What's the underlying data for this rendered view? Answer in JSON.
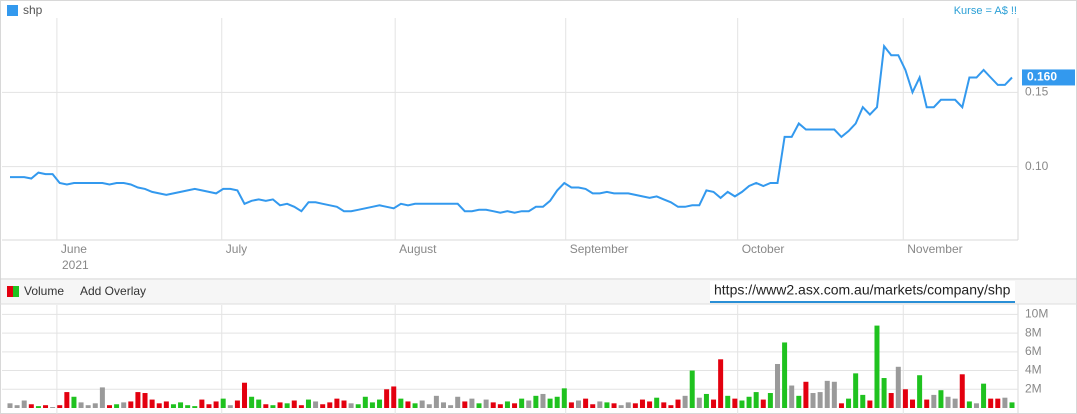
{
  "chart_data": [
    {
      "type": "line",
      "note": "Kurse = A$ !!",
      "year_label": "2021",
      "series": [
        {
          "name": "shp",
          "color": "#3399ee",
          "values": [
            0.093,
            0.093,
            0.093,
            0.092,
            0.096,
            0.095,
            0.095,
            0.089,
            0.088,
            0.089,
            0.089,
            0.089,
            0.089,
            0.089,
            0.088,
            0.089,
            0.089,
            0.088,
            0.086,
            0.085,
            0.083,
            0.082,
            0.081,
            0.082,
            0.083,
            0.084,
            0.085,
            0.084,
            0.083,
            0.082,
            0.085,
            0.085,
            0.084,
            0.075,
            0.077,
            0.078,
            0.077,
            0.078,
            0.074,
            0.075,
            0.073,
            0.07,
            0.076,
            0.076,
            0.075,
            0.074,
            0.073,
            0.07,
            0.07,
            0.071,
            0.072,
            0.073,
            0.074,
            0.073,
            0.072,
            0.075,
            0.074,
            0.075,
            0.075,
            0.075,
            0.075,
            0.075,
            0.075,
            0.075,
            0.07,
            0.07,
            0.071,
            0.071,
            0.07,
            0.069,
            0.07,
            0.069,
            0.07,
            0.07,
            0.073,
            0.073,
            0.077,
            0.084,
            0.089,
            0.086,
            0.086,
            0.085,
            0.082,
            0.082,
            0.083,
            0.082,
            0.082,
            0.082,
            0.081,
            0.08,
            0.079,
            0.08,
            0.078,
            0.076,
            0.073,
            0.073,
            0.074,
            0.074,
            0.084,
            0.083,
            0.079,
            0.083,
            0.08,
            0.083,
            0.087,
            0.089,
            0.087,
            0.089,
            0.089,
            0.12,
            0.12,
            0.129,
            0.125,
            0.125,
            0.125,
            0.125,
            0.125,
            0.12,
            0.124,
            0.129,
            0.14,
            0.135,
            0.14,
            0.181,
            0.175,
            0.175,
            0.165,
            0.15,
            0.16,
            0.14,
            0.14,
            0.145,
            0.145,
            0.145,
            0.14,
            0.16,
            0.16,
            0.165,
            0.16,
            0.155,
            0.155,
            0.16
          ]
        }
      ],
      "current_value": {
        "value": 0.16,
        "label": "0.160"
      },
      "xlim": [
        0,
        141
      ],
      "xticks": [
        {
          "value": 6.6,
          "label": "June"
        },
        {
          "value": 29.8,
          "label": "July"
        },
        {
          "value": 54.2,
          "label": "August"
        },
        {
          "value": 78.2,
          "label": "September"
        },
        {
          "value": 102.4,
          "label": "October"
        },
        {
          "value": 125.7,
          "label": "November"
        }
      ],
      "ylim": [
        0.052,
        0.2
      ],
      "yticks": [
        {
          "value": 0.1,
          "label": "0.10"
        },
        0.15
      ],
      "grid": true
    },
    {
      "type": "bar",
      "add_overlay": "Add Overlay",
      "url": "https://www2.asx.com.au/markets/company/shp",
      "series": [
        {
          "name": "Volume",
          "values": [
            500000,
            300000,
            800000,
            400000,
            200000,
            300000,
            100000,
            300000,
            1700000,
            1200000,
            600000,
            300000,
            500000,
            2200000,
            300000,
            400000,
            600000,
            700000,
            1700000,
            1600000,
            900000,
            500000,
            700000,
            400000,
            600000,
            300000,
            200000,
            900000,
            400000,
            700000,
            1000000,
            300000,
            800000,
            2700000,
            1200000,
            900000,
            400000,
            300000,
            600000,
            500000,
            800000,
            300000,
            900000,
            700000,
            400000,
            600000,
            1000000,
            800000,
            500000,
            400000,
            1200000,
            600000,
            900000,
            2000000,
            2300000,
            1000000,
            700000,
            500000,
            800000,
            400000,
            1300000,
            600000,
            300000,
            1200000,
            700000,
            1000000,
            500000,
            900000,
            600000,
            400000,
            700000,
            500000,
            1000000,
            800000,
            1300000,
            1500000,
            1000000,
            1200000,
            2100000,
            600000,
            800000,
            1000000,
            400000,
            700000,
            600000,
            500000,
            300000,
            600000,
            500000,
            900000,
            700000,
            1100000,
            600000,
            300000,
            900000,
            1300000,
            4000000,
            1100000,
            1500000,
            900000,
            5200000,
            1300000,
            1000000,
            800000,
            1200000,
            1700000,
            900000,
            1600000,
            4700000,
            7000000,
            2400000,
            1300000,
            2800000,
            1600000,
            1700000,
            2900000,
            2800000,
            500000,
            1000000,
            3700000,
            1400000,
            800000,
            8800000,
            3200000,
            1600000,
            4400000,
            2000000,
            900000,
            3500000,
            900000,
            1400000,
            1900000,
            1200000,
            1000000,
            3600000,
            700000,
            500000,
            2600000,
            1000000,
            1000000,
            1100000,
            600000
          ]
        }
      ],
      "up_color": "#1fc21f",
      "down_color": "#e3000f",
      "flat_color": "#9a9a9a",
      "xlim": [
        0,
        141
      ],
      "ylim": [
        0,
        11000000
      ],
      "yticks": [
        {
          "value": 2000000,
          "label": "2M"
        },
        {
          "value": 4000000,
          "label": "4M"
        },
        {
          "value": 6000000,
          "label": "6M"
        },
        {
          "value": 8000000,
          "label": "8M"
        },
        {
          "value": 10000000,
          "label": "10M"
        }
      ],
      "grid": true
    }
  ]
}
